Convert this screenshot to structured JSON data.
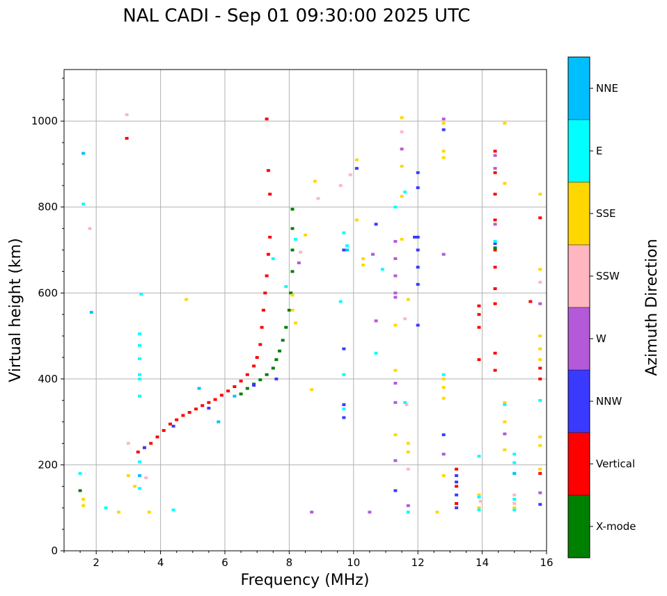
{
  "chart_data": {
    "type": "scatter",
    "title": "NAL CADI - Sep 01 09:30:00 2025 UTC",
    "xlabel": "Frequency (MHz)",
    "ylabel": "Virtual height (km)",
    "xlim": [
      1,
      16
    ],
    "ylim": [
      0,
      1120
    ],
    "xticks": [
      2,
      4,
      6,
      8,
      10,
      12,
      14,
      16
    ],
    "yticks": [
      0,
      200,
      400,
      600,
      800,
      1000
    ],
    "grid": true,
    "colorbar": {
      "title": "Azimuth Direction",
      "categories": [
        {
          "name": "X-mode",
          "color": "#008000"
        },
        {
          "name": "Vertical",
          "color": "#ff0000"
        },
        {
          "name": "NNW",
          "color": "#3a3aff"
        },
        {
          "name": "W",
          "color": "#b45ad8"
        },
        {
          "name": "SSW",
          "color": "#ffb6c1"
        },
        {
          "name": "SSE",
          "color": "#ffd700"
        },
        {
          "name": "E",
          "color": "#00ffff"
        },
        {
          "name": "NNE",
          "color": "#00bfff"
        }
      ]
    },
    "series": [
      {
        "name": "Vertical",
        "points": [
          [
            3.3,
            230
          ],
          [
            3.5,
            240
          ],
          [
            3.7,
            250
          ],
          [
            3.9,
            265
          ],
          [
            4.1,
            280
          ],
          [
            4.3,
            295
          ],
          [
            4.5,
            305
          ],
          [
            4.7,
            315
          ],
          [
            4.9,
            322
          ],
          [
            5.1,
            330
          ],
          [
            5.3,
            338
          ],
          [
            5.5,
            345
          ],
          [
            5.7,
            352
          ],
          [
            5.9,
            362
          ],
          [
            6.1,
            372
          ],
          [
            6.3,
            382
          ],
          [
            6.5,
            395
          ],
          [
            6.7,
            410
          ],
          [
            6.9,
            430
          ],
          [
            7.0,
            450
          ],
          [
            7.1,
            480
          ],
          [
            7.15,
            520
          ],
          [
            7.2,
            560
          ],
          [
            7.25,
            600
          ],
          [
            7.3,
            640
          ],
          [
            7.35,
            690
          ],
          [
            7.4,
            730
          ],
          [
            7.3,
            1005
          ],
          [
            7.35,
            885
          ],
          [
            7.4,
            830
          ],
          [
            2.95,
            960
          ],
          [
            13.2,
            190
          ],
          [
            13.2,
            150
          ],
          [
            13.2,
            110
          ],
          [
            13.9,
            570
          ],
          [
            13.9,
            550
          ],
          [
            13.9,
            520
          ],
          [
            13.9,
            445
          ],
          [
            14.4,
            930
          ],
          [
            14.4,
            880
          ],
          [
            14.4,
            830
          ],
          [
            14.4,
            770
          ],
          [
            14.4,
            700
          ],
          [
            14.4,
            660
          ],
          [
            14.4,
            610
          ],
          [
            14.4,
            575
          ],
          [
            14.4,
            460
          ],
          [
            14.4,
            420
          ],
          [
            15.5,
            580
          ],
          [
            15.8,
            775
          ],
          [
            15.8,
            425
          ],
          [
            15.8,
            400
          ],
          [
            15.8,
            180
          ]
        ]
      },
      {
        "name": "X-mode",
        "points": [
          [
            6.5,
            365
          ],
          [
            6.7,
            378
          ],
          [
            6.9,
            388
          ],
          [
            7.1,
            398
          ],
          [
            7.3,
            410
          ],
          [
            7.5,
            425
          ],
          [
            7.6,
            445
          ],
          [
            7.7,
            465
          ],
          [
            7.8,
            490
          ],
          [
            7.9,
            520
          ],
          [
            8.0,
            560
          ],
          [
            8.05,
            600
          ],
          [
            8.1,
            650
          ],
          [
            8.1,
            700
          ],
          [
            8.1,
            750
          ],
          [
            8.1,
            795
          ],
          [
            1.5,
            140
          ],
          [
            14.4,
            705
          ]
        ]
      },
      {
        "name": "NNW",
        "points": [
          [
            3.5,
            240
          ],
          [
            4.4,
            290
          ],
          [
            5.5,
            332
          ],
          [
            6.9,
            385
          ],
          [
            7.6,
            400
          ],
          [
            9.7,
            700
          ],
          [
            9.7,
            470
          ],
          [
            9.7,
            340
          ],
          [
            9.7,
            310
          ],
          [
            10.1,
            890
          ],
          [
            12.0,
            880
          ],
          [
            12.0,
            845
          ],
          [
            12.0,
            730
          ],
          [
            12.0,
            700
          ],
          [
            12.0,
            660
          ],
          [
            12.0,
            620
          ],
          [
            12.0,
            525
          ],
          [
            11.9,
            730
          ],
          [
            12.8,
            980
          ],
          [
            12.8,
            270
          ],
          [
            13.2,
            175
          ],
          [
            13.2,
            160
          ],
          [
            13.2,
            130
          ],
          [
            13.2,
            100
          ],
          [
            14.4,
            715
          ],
          [
            15.8,
            108
          ],
          [
            11.3,
            140
          ],
          [
            10.7,
            760
          ]
        ]
      },
      {
        "name": "W",
        "points": [
          [
            8.7,
            90
          ],
          [
            10.5,
            90
          ],
          [
            11.3,
            720
          ],
          [
            11.3,
            680
          ],
          [
            11.3,
            640
          ],
          [
            11.3,
            600
          ],
          [
            11.3,
            590
          ],
          [
            11.3,
            390
          ],
          [
            11.3,
            345
          ],
          [
            11.3,
            210
          ],
          [
            11.7,
            105
          ],
          [
            11.5,
            935
          ],
          [
            12.8,
            690
          ],
          [
            12.8,
            225
          ],
          [
            12.8,
            1005
          ],
          [
            14.4,
            760
          ],
          [
            14.4,
            920
          ],
          [
            14.4,
            890
          ],
          [
            14.7,
            272
          ],
          [
            15.8,
            135
          ],
          [
            15.8,
            575
          ],
          [
            10.6,
            690
          ],
          [
            10.7,
            535
          ],
          [
            8.3,
            670
          ]
        ]
      },
      {
        "name": "SSW",
        "points": [
          [
            3.0,
            250
          ],
          [
            3.55,
            170
          ],
          [
            1.8,
            750
          ],
          [
            2.95,
            1015
          ],
          [
            9.9,
            875
          ],
          [
            9.6,
            850
          ],
          [
            8.9,
            820
          ],
          [
            11.5,
            975
          ],
          [
            11.6,
            540
          ],
          [
            11.65,
            340
          ],
          [
            11.7,
            190
          ],
          [
            15.0,
            130
          ],
          [
            15.0,
            110
          ],
          [
            15.8,
            625
          ],
          [
            13.95,
            115
          ],
          [
            8.35,
            695
          ]
        ]
      },
      {
        "name": "SSE",
        "points": [
          [
            1.6,
            120
          ],
          [
            1.6,
            105
          ],
          [
            2.7,
            90
          ],
          [
            3.0,
            175
          ],
          [
            3.2,
            150
          ],
          [
            3.65,
            90
          ],
          [
            4.8,
            585
          ],
          [
            8.8,
            860
          ],
          [
            8.5,
            735
          ],
          [
            8.7,
            375
          ],
          [
            10.1,
            910
          ],
          [
            10.1,
            770
          ],
          [
            10.3,
            680
          ],
          [
            10.3,
            665
          ],
          [
            11.5,
            1008
          ],
          [
            11.5,
            895
          ],
          [
            11.5,
            825
          ],
          [
            11.5,
            725
          ],
          [
            11.3,
            525
          ],
          [
            11.3,
            420
          ],
          [
            11.3,
            270
          ],
          [
            11.7,
            585
          ],
          [
            11.7,
            250
          ],
          [
            11.7,
            230
          ],
          [
            12.6,
            90
          ],
          [
            12.8,
            995
          ],
          [
            12.8,
            930
          ],
          [
            12.8,
            915
          ],
          [
            12.8,
            400
          ],
          [
            12.8,
            380
          ],
          [
            12.8,
            355
          ],
          [
            12.8,
            175
          ],
          [
            13.9,
            130
          ],
          [
            13.9,
            100
          ],
          [
            14.7,
            995
          ],
          [
            14.7,
            855
          ],
          [
            14.7,
            345
          ],
          [
            14.7,
            300
          ],
          [
            14.7,
            235
          ],
          [
            15.0,
            120
          ],
          [
            15.0,
            100
          ],
          [
            15.8,
            830
          ],
          [
            15.8,
            655
          ],
          [
            15.8,
            500
          ],
          [
            15.8,
            470
          ],
          [
            15.8,
            445
          ],
          [
            15.8,
            265
          ],
          [
            15.8,
            245
          ],
          [
            15.8,
            190
          ],
          [
            8.2,
            530
          ],
          [
            8.1,
            560
          ],
          [
            8.1,
            595
          ]
        ]
      },
      {
        "name": "E",
        "points": [
          [
            3.35,
            400
          ],
          [
            3.35,
            360
          ],
          [
            3.35,
            207
          ],
          [
            3.35,
            145
          ],
          [
            3.35,
            410
          ],
          [
            3.4,
            597
          ],
          [
            3.35,
            505
          ],
          [
            3.35,
            478
          ],
          [
            3.35,
            447
          ],
          [
            4.4,
            95
          ],
          [
            2.3,
            100
          ],
          [
            1.6,
            807
          ],
          [
            1.5,
            180
          ],
          [
            7.5,
            680
          ],
          [
            7.9,
            615
          ],
          [
            9.6,
            580
          ],
          [
            9.7,
            740
          ],
          [
            9.7,
            410
          ],
          [
            9.7,
            330
          ],
          [
            10.7,
            460
          ],
          [
            11.3,
            800
          ],
          [
            11.6,
            835
          ],
          [
            11.6,
            345
          ],
          [
            12.8,
            410
          ],
          [
            13.9,
            220
          ],
          [
            13.9,
            125
          ],
          [
            13.9,
            95
          ],
          [
            14.4,
            720
          ],
          [
            14.7,
            340
          ],
          [
            15.0,
            225
          ],
          [
            15.0,
            205
          ],
          [
            15.0,
            180
          ],
          [
            15.0,
            120
          ],
          [
            15.0,
            95
          ],
          [
            15.8,
            350
          ],
          [
            11.7,
            90
          ],
          [
            9.8,
            710
          ],
          [
            10.9,
            655
          ],
          [
            8.2,
            725
          ]
        ]
      },
      {
        "name": "NNE",
        "points": [
          [
            1.85,
            555
          ],
          [
            1.6,
            925
          ],
          [
            3.35,
            175
          ],
          [
            5.8,
            300
          ],
          [
            9.8,
            700
          ],
          [
            15.0,
            180
          ],
          [
            6.3,
            360
          ],
          [
            5.2,
            378
          ]
        ]
      }
    ]
  }
}
